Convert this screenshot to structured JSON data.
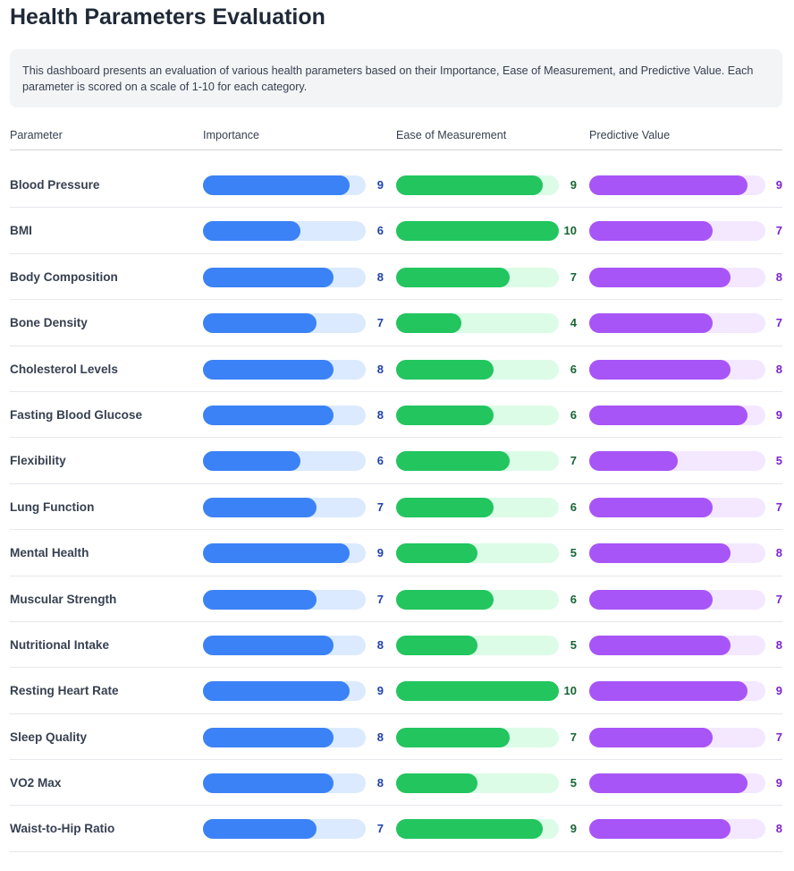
{
  "page": {
    "title": "Health Parameters Evaluation",
    "description": "This dashboard presents an evaluation of various health parameters based on their Importance, Ease of Measurement, and Predictive Value. Each parameter is scored on a scale of 1-10 for each category."
  },
  "table": {
    "headers": [
      "Parameter",
      "Importance",
      "Ease of Measurement",
      "Predictive Value"
    ]
  },
  "colors": {
    "importance": {
      "fill": "#3b82f6",
      "track": "#dbeafe",
      "text": "#1e40af"
    },
    "ease": {
      "fill": "#22c55e",
      "track": "#dcfce7",
      "text": "#166534"
    },
    "predictive": {
      "fill": "#a855f7",
      "track": "#f3e8ff",
      "text": "#7e22ce"
    }
  },
  "chart_data": {
    "type": "bar",
    "scale": [
      0,
      10
    ],
    "categories": [
      "Blood Pressure",
      "BMI",
      "Body Composition",
      "Bone Density",
      "Cholesterol Levels",
      "Fasting Blood Glucose",
      "Flexibility",
      "Lung Function",
      "Mental Health",
      "Muscular Strength",
      "Nutritional Intake",
      "Resting Heart Rate",
      "Sleep Quality",
      "VO2 Max",
      "Waist-to-Hip Ratio"
    ],
    "series": [
      {
        "name": "Importance",
        "values": [
          9,
          6,
          8,
          7,
          8,
          8,
          6,
          7,
          9,
          7,
          8,
          9,
          8,
          8,
          7
        ]
      },
      {
        "name": "Ease of Measurement",
        "values": [
          9,
          10,
          7,
          4,
          6,
          6,
          7,
          6,
          5,
          6,
          5,
          10,
          7,
          5,
          9
        ]
      },
      {
        "name": "Predictive Value",
        "values": [
          9,
          7,
          8,
          7,
          8,
          9,
          5,
          7,
          8,
          7,
          8,
          9,
          7,
          9,
          8
        ]
      }
    ]
  }
}
